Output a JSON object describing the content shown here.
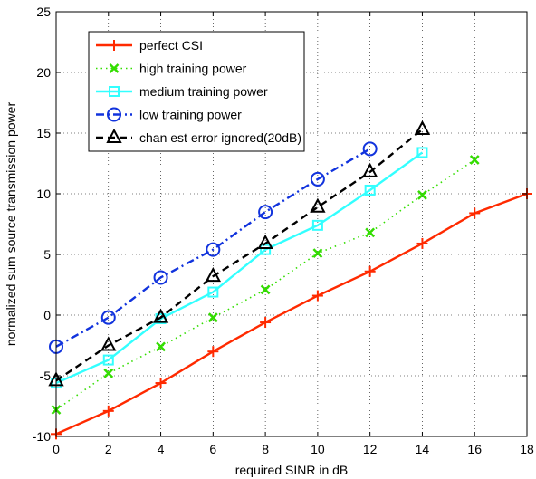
{
  "chart_data": {
    "type": "line",
    "xlabel": "required SINR in dB",
    "ylabel": "normalized sum source transmission power",
    "xlim": [
      0,
      18
    ],
    "ylim": [
      -10,
      25
    ],
    "xticks": [
      0,
      2,
      4,
      6,
      8,
      10,
      12,
      14,
      16,
      18
    ],
    "yticks": [
      -10,
      -5,
      0,
      5,
      10,
      15,
      20,
      25
    ],
    "grid": true,
    "legend_position": "top-left",
    "series": [
      {
        "name": "perfect CSI",
        "color": "#ff2a00",
        "line_style": "solid",
        "marker": "plus",
        "x": [
          0,
          2,
          4,
          6,
          8,
          10,
          12,
          14,
          16,
          18
        ],
        "y": [
          -9.8,
          -7.9,
          -5.6,
          -3.0,
          -0.6,
          1.6,
          3.6,
          5.9,
          8.4,
          10.0
        ]
      },
      {
        "name": "high training power",
        "color": "#33dd00",
        "line_style": "dotted",
        "marker": "x",
        "x": [
          0,
          2,
          4,
          6,
          8,
          10,
          12,
          14,
          16
        ],
        "y": [
          -7.8,
          -4.8,
          -2.6,
          -0.2,
          2.1,
          5.1,
          6.8,
          9.9,
          12.8
        ]
      },
      {
        "name": "medium training power",
        "color": "#33ffff",
        "line_style": "solid",
        "marker": "square",
        "x": [
          0,
          2,
          4,
          6,
          8,
          10,
          12,
          14
        ],
        "y": [
          -5.6,
          -3.7,
          -0.3,
          1.9,
          5.4,
          7.4,
          10.3,
          13.4
        ]
      },
      {
        "name": "low training power",
        "color": "#1133dd",
        "line_style": "dashdot",
        "marker": "circle",
        "x": [
          0,
          2,
          4,
          6,
          8,
          10,
          12
        ],
        "y": [
          -2.6,
          -0.2,
          3.1,
          5.4,
          8.5,
          11.2,
          13.7
        ]
      },
      {
        "name": "chan est error ignored(20dB)",
        "color": "#000000",
        "line_style": "dashed",
        "marker": "triangle",
        "x": [
          0,
          2,
          4,
          6,
          8,
          10,
          12,
          14
        ],
        "y": [
          -5.4,
          -2.5,
          -0.2,
          3.2,
          5.9,
          8.9,
          11.8,
          15.3
        ]
      }
    ]
  }
}
